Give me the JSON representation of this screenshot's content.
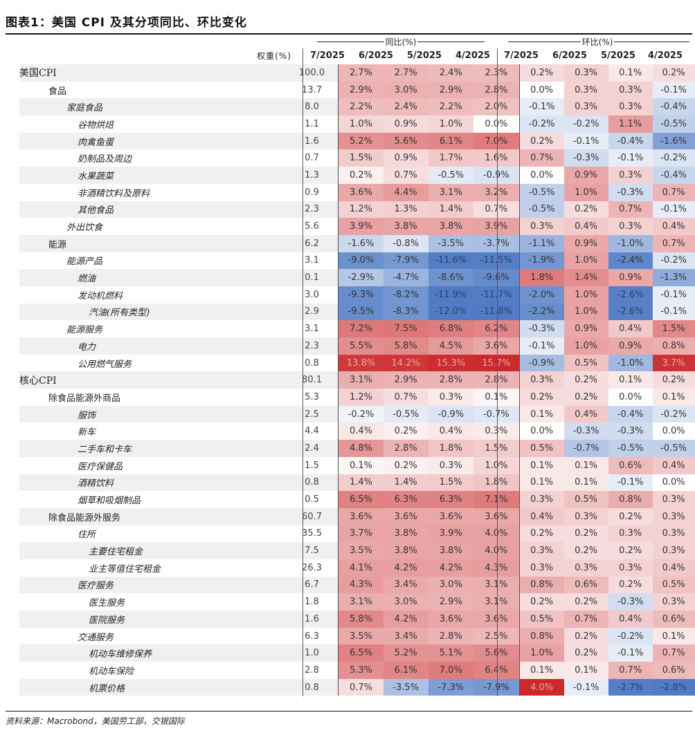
{
  "title": "图表1：美国 CPI 及其分项同比、环比变化",
  "header": {
    "yoy_group": "同比(%)",
    "mom_group": "环比(%)",
    "weight_label": "权重(%)",
    "months": [
      "7/2025",
      "6/2025",
      "5/2025",
      "4/2025"
    ]
  },
  "rows": [
    {
      "name": "美国CPI",
      "indent": 0,
      "weight": "100.0",
      "yoy": [
        "2.7%",
        "2.7%",
        "2.4%",
        "2.3%"
      ],
      "mom": [
        "0.2%",
        "0.3%",
        "0.1%",
        "0.2%"
      ]
    },
    {
      "name": "食品",
      "indent": 1,
      "weight": "13.7",
      "yoy": [
        "2.9%",
        "3.0%",
        "2.9%",
        "2.8%"
      ],
      "mom": [
        "0.0%",
        "0.3%",
        "0.3%",
        "-0.1%"
      ]
    },
    {
      "name": "家庭食品",
      "indent": 2,
      "weight": "8.0",
      "yoy": [
        "2.2%",
        "2.4%",
        "2.2%",
        "2.0%"
      ],
      "mom": [
        "-0.1%",
        "0.3%",
        "0.3%",
        "-0.4%"
      ]
    },
    {
      "name": "谷物烘焙",
      "indent": 3,
      "weight": "1.1",
      "yoy": [
        "1.0%",
        "0.9%",
        "1.0%",
        "0.0%"
      ],
      "mom": [
        "-0.2%",
        "-0.2%",
        "1.1%",
        "-0.5%"
      ]
    },
    {
      "name": "肉禽鱼蛋",
      "indent": 3,
      "weight": "1.6",
      "yoy": [
        "5.2%",
        "5.6%",
        "6.1%",
        "7.0%"
      ],
      "mom": [
        "0.2%",
        "-0.1%",
        "-0.4%",
        "-1.6%"
      ]
    },
    {
      "name": "奶制品及周边",
      "indent": 3,
      "weight": "0.7",
      "yoy": [
        "1.5%",
        "0.9%",
        "1.7%",
        "1.6%"
      ],
      "mom": [
        "0.7%",
        "-0.3%",
        "-0.1%",
        "-0.2%"
      ]
    },
    {
      "name": "水果蔬菜",
      "indent": 3,
      "weight": "1.3",
      "yoy": [
        "0.2%",
        "0.7%",
        "-0.5%",
        "-0.9%"
      ],
      "mom": [
        "0.0%",
        "0.9%",
        "0.3%",
        "-0.4%"
      ]
    },
    {
      "name": "非酒精饮料及原料",
      "indent": 3,
      "weight": "0.9",
      "yoy": [
        "3.6%",
        "4.4%",
        "3.1%",
        "3.2%"
      ],
      "mom": [
        "-0.5%",
        "1.0%",
        "-0.3%",
        "0.7%"
      ]
    },
    {
      "name": "其他食品",
      "indent": 3,
      "weight": "2.3",
      "yoy": [
        "1.2%",
        "1.3%",
        "1.4%",
        "0.7%"
      ],
      "mom": [
        "-0.5%",
        "0.2%",
        "0.7%",
        "-0.1%"
      ]
    },
    {
      "name": "外出饮食",
      "indent": 2,
      "weight": "5.6",
      "yoy": [
        "3.9%",
        "3.8%",
        "3.8%",
        "3.9%"
      ],
      "mom": [
        "0.3%",
        "0.4%",
        "0.3%",
        "0.4%"
      ]
    },
    {
      "name": "能源",
      "indent": 1,
      "weight": "6.2",
      "yoy": [
        "-1.6%",
        "-0.8%",
        "-3.5%",
        "-3.7%"
      ],
      "mom": [
        "-1.1%",
        "0.9%",
        "-1.0%",
        "0.7%"
      ]
    },
    {
      "name": "能源产品",
      "indent": 2,
      "weight": "3.1",
      "yoy": [
        "-9.0%",
        "-7.9%",
        "-11.6%",
        "-11.5%"
      ],
      "mom": [
        "-1.9%",
        "1.0%",
        "-2.4%",
        "-0.2%"
      ]
    },
    {
      "name": "燃油",
      "indent": 3,
      "weight": "0.1",
      "yoy": [
        "-2.9%",
        "-4.7%",
        "-8.6%",
        "-9.6%"
      ],
      "mom": [
        "1.8%",
        "1.4%",
        "0.9%",
        "-1.3%"
      ]
    },
    {
      "name": "发动机燃料",
      "indent": 3,
      "weight": "3.0",
      "yoy": [
        "-9.3%",
        "-8.2%",
        "-11.9%",
        "-11.7%"
      ],
      "mom": [
        "-2.0%",
        "1.0%",
        "-2.6%",
        "-0.1%"
      ]
    },
    {
      "name": "汽油(所有类型)",
      "indent": 4,
      "weight": "2.9",
      "yoy": [
        "-9.5%",
        "-8.3%",
        "-12.0%",
        "-11.8%"
      ],
      "mom": [
        "-2.2%",
        "1.0%",
        "-2.6%",
        "-0.1%"
      ]
    },
    {
      "name": "能源服务",
      "indent": 2,
      "weight": "3.1",
      "yoy": [
        "7.2%",
        "7.5%",
        "6.8%",
        "6.2%"
      ],
      "mom": [
        "-0.3%",
        "0.9%",
        "0.4%",
        "1.5%"
      ]
    },
    {
      "name": "电力",
      "indent": 3,
      "weight": "2.3",
      "yoy": [
        "5.5%",
        "5.8%",
        "4.5%",
        "3.6%"
      ],
      "mom": [
        "-0.1%",
        "1.0%",
        "0.9%",
        "0.8%"
      ]
    },
    {
      "name": "公用燃气服务",
      "indent": 3,
      "weight": "0.8",
      "yoy": [
        "13.8%",
        "14.2%",
        "15.3%",
        "15.7%"
      ],
      "mom": [
        "-0.9%",
        "0.5%",
        "-1.0%",
        "3.7%"
      ]
    },
    {
      "name": "核心CPI",
      "indent": 0,
      "weight": "80.1",
      "yoy": [
        "3.1%",
        "2.9%",
        "2.8%",
        "2.8%"
      ],
      "mom": [
        "0.3%",
        "0.2%",
        "0.1%",
        "0.2%"
      ]
    },
    {
      "name": "除食品能源外商品",
      "indent": 1,
      "weight": "5.3",
      "yoy": [
        "1.2%",
        "0.7%",
        "0.3%",
        "0.1%"
      ],
      "mom": [
        "0.2%",
        "0.2%",
        "0.0%",
        "0.1%"
      ]
    },
    {
      "name": "服饰",
      "indent": 3,
      "weight": "2.5",
      "yoy": [
        "-0.2%",
        "-0.5%",
        "-0.9%",
        "-0.7%"
      ],
      "mom": [
        "0.1%",
        "0.4%",
        "-0.4%",
        "-0.2%"
      ]
    },
    {
      "name": "新车",
      "indent": 3,
      "weight": "4.4",
      "yoy": [
        "0.4%",
        "0.2%",
        "0.4%",
        "0.3%"
      ],
      "mom": [
        "0.0%",
        "-0.3%",
        "-0.3%",
        "0.0%"
      ]
    },
    {
      "name": "二手车和卡车",
      "indent": 3,
      "weight": "2.4",
      "yoy": [
        "4.8%",
        "2.8%",
        "1.8%",
        "1.5%"
      ],
      "mom": [
        "0.5%",
        "-0.7%",
        "-0.5%",
        "-0.5%"
      ]
    },
    {
      "name": "医疗保健品",
      "indent": 3,
      "weight": "1.5",
      "yoy": [
        "0.1%",
        "0.2%",
        "0.3%",
        "1.0%"
      ],
      "mom": [
        "0.1%",
        "0.1%",
        "0.6%",
        "0.4%"
      ]
    },
    {
      "name": "酒精饮料",
      "indent": 3,
      "weight": "0.8",
      "yoy": [
        "1.4%",
        "1.4%",
        "1.5%",
        "1.8%"
      ],
      "mom": [
        "0.1%",
        "0.1%",
        "-0.1%",
        "0.0%"
      ]
    },
    {
      "name": "烟草和吸烟制品",
      "indent": 3,
      "weight": "0.5",
      "yoy": [
        "6.5%",
        "6.3%",
        "6.3%",
        "7.1%"
      ],
      "mom": [
        "0.3%",
        "0.5%",
        "0.8%",
        "0.3%"
      ]
    },
    {
      "name": "除食品能源外服务",
      "indent": 1,
      "weight": "60.7",
      "yoy": [
        "3.6%",
        "3.6%",
        "3.6%",
        "3.6%"
      ],
      "mom": [
        "0.4%",
        "0.3%",
        "0.2%",
        "0.3%"
      ]
    },
    {
      "name": "住所",
      "indent": 3,
      "weight": "35.5",
      "yoy": [
        "3.7%",
        "3.8%",
        "3.9%",
        "4.0%"
      ],
      "mom": [
        "0.2%",
        "0.2%",
        "0.3%",
        "0.3%"
      ]
    },
    {
      "name": "主要住宅租金",
      "indent": 4,
      "weight": "7.5",
      "yoy": [
        "3.5%",
        "3.8%",
        "3.8%",
        "4.0%"
      ],
      "mom": [
        "0.3%",
        "0.2%",
        "0.2%",
        "0.3%"
      ]
    },
    {
      "name": "业主等值住宅租金",
      "indent": 4,
      "weight": "26.3",
      "yoy": [
        "4.1%",
        "4.2%",
        "4.2%",
        "4.3%"
      ],
      "mom": [
        "0.3%",
        "0.3%",
        "0.3%",
        "0.4%"
      ]
    },
    {
      "name": "医疗服务",
      "indent": 3,
      "weight": "6.7",
      "yoy": [
        "4.3%",
        "3.4%",
        "3.0%",
        "3.1%"
      ],
      "mom": [
        "0.8%",
        "0.6%",
        "0.2%",
        "0.5%"
      ]
    },
    {
      "name": "医生服务",
      "indent": 4,
      "weight": "1.8",
      "yoy": [
        "3.1%",
        "3.0%",
        "2.9%",
        "3.1%"
      ],
      "mom": [
        "0.2%",
        "0.2%",
        "-0.3%",
        "0.3%"
      ]
    },
    {
      "name": "医院服务",
      "indent": 4,
      "weight": "1.6",
      "yoy": [
        "5.8%",
        "4.2%",
        "3.6%",
        "3.6%"
      ],
      "mom": [
        "0.5%",
        "0.7%",
        "0.4%",
        "0.6%"
      ]
    },
    {
      "name": "交通服务",
      "indent": 3,
      "weight": "6.3",
      "yoy": [
        "3.5%",
        "3.4%",
        "2.8%",
        "2.5%"
      ],
      "mom": [
        "0.8%",
        "0.2%",
        "-0.2%",
        "0.1%"
      ]
    },
    {
      "name": "机动车维修保养",
      "indent": 4,
      "weight": "1.0",
      "yoy": [
        "6.5%",
        "5.2%",
        "5.1%",
        "5.6%"
      ],
      "mom": [
        "1.0%",
        "0.2%",
        "-0.1%",
        "0.7%"
      ]
    },
    {
      "name": "机动车保险",
      "indent": 4,
      "weight": "2.8",
      "yoy": [
        "5.3%",
        "6.1%",
        "7.0%",
        "6.4%"
      ],
      "mom": [
        "0.1%",
        "0.1%",
        "0.7%",
        "0.6%"
      ]
    },
    {
      "name": "机票价格",
      "indent": 4,
      "weight": "0.8",
      "yoy": [
        "0.7%",
        "-3.5%",
        "-7.3%",
        "-7.9%"
      ],
      "mom": [
        "4.0%",
        "-0.1%",
        "-2.7%",
        "-2.8%"
      ]
    }
  ],
  "source": "资料来源：Macrobond，美国劳工部，交银国际"
}
